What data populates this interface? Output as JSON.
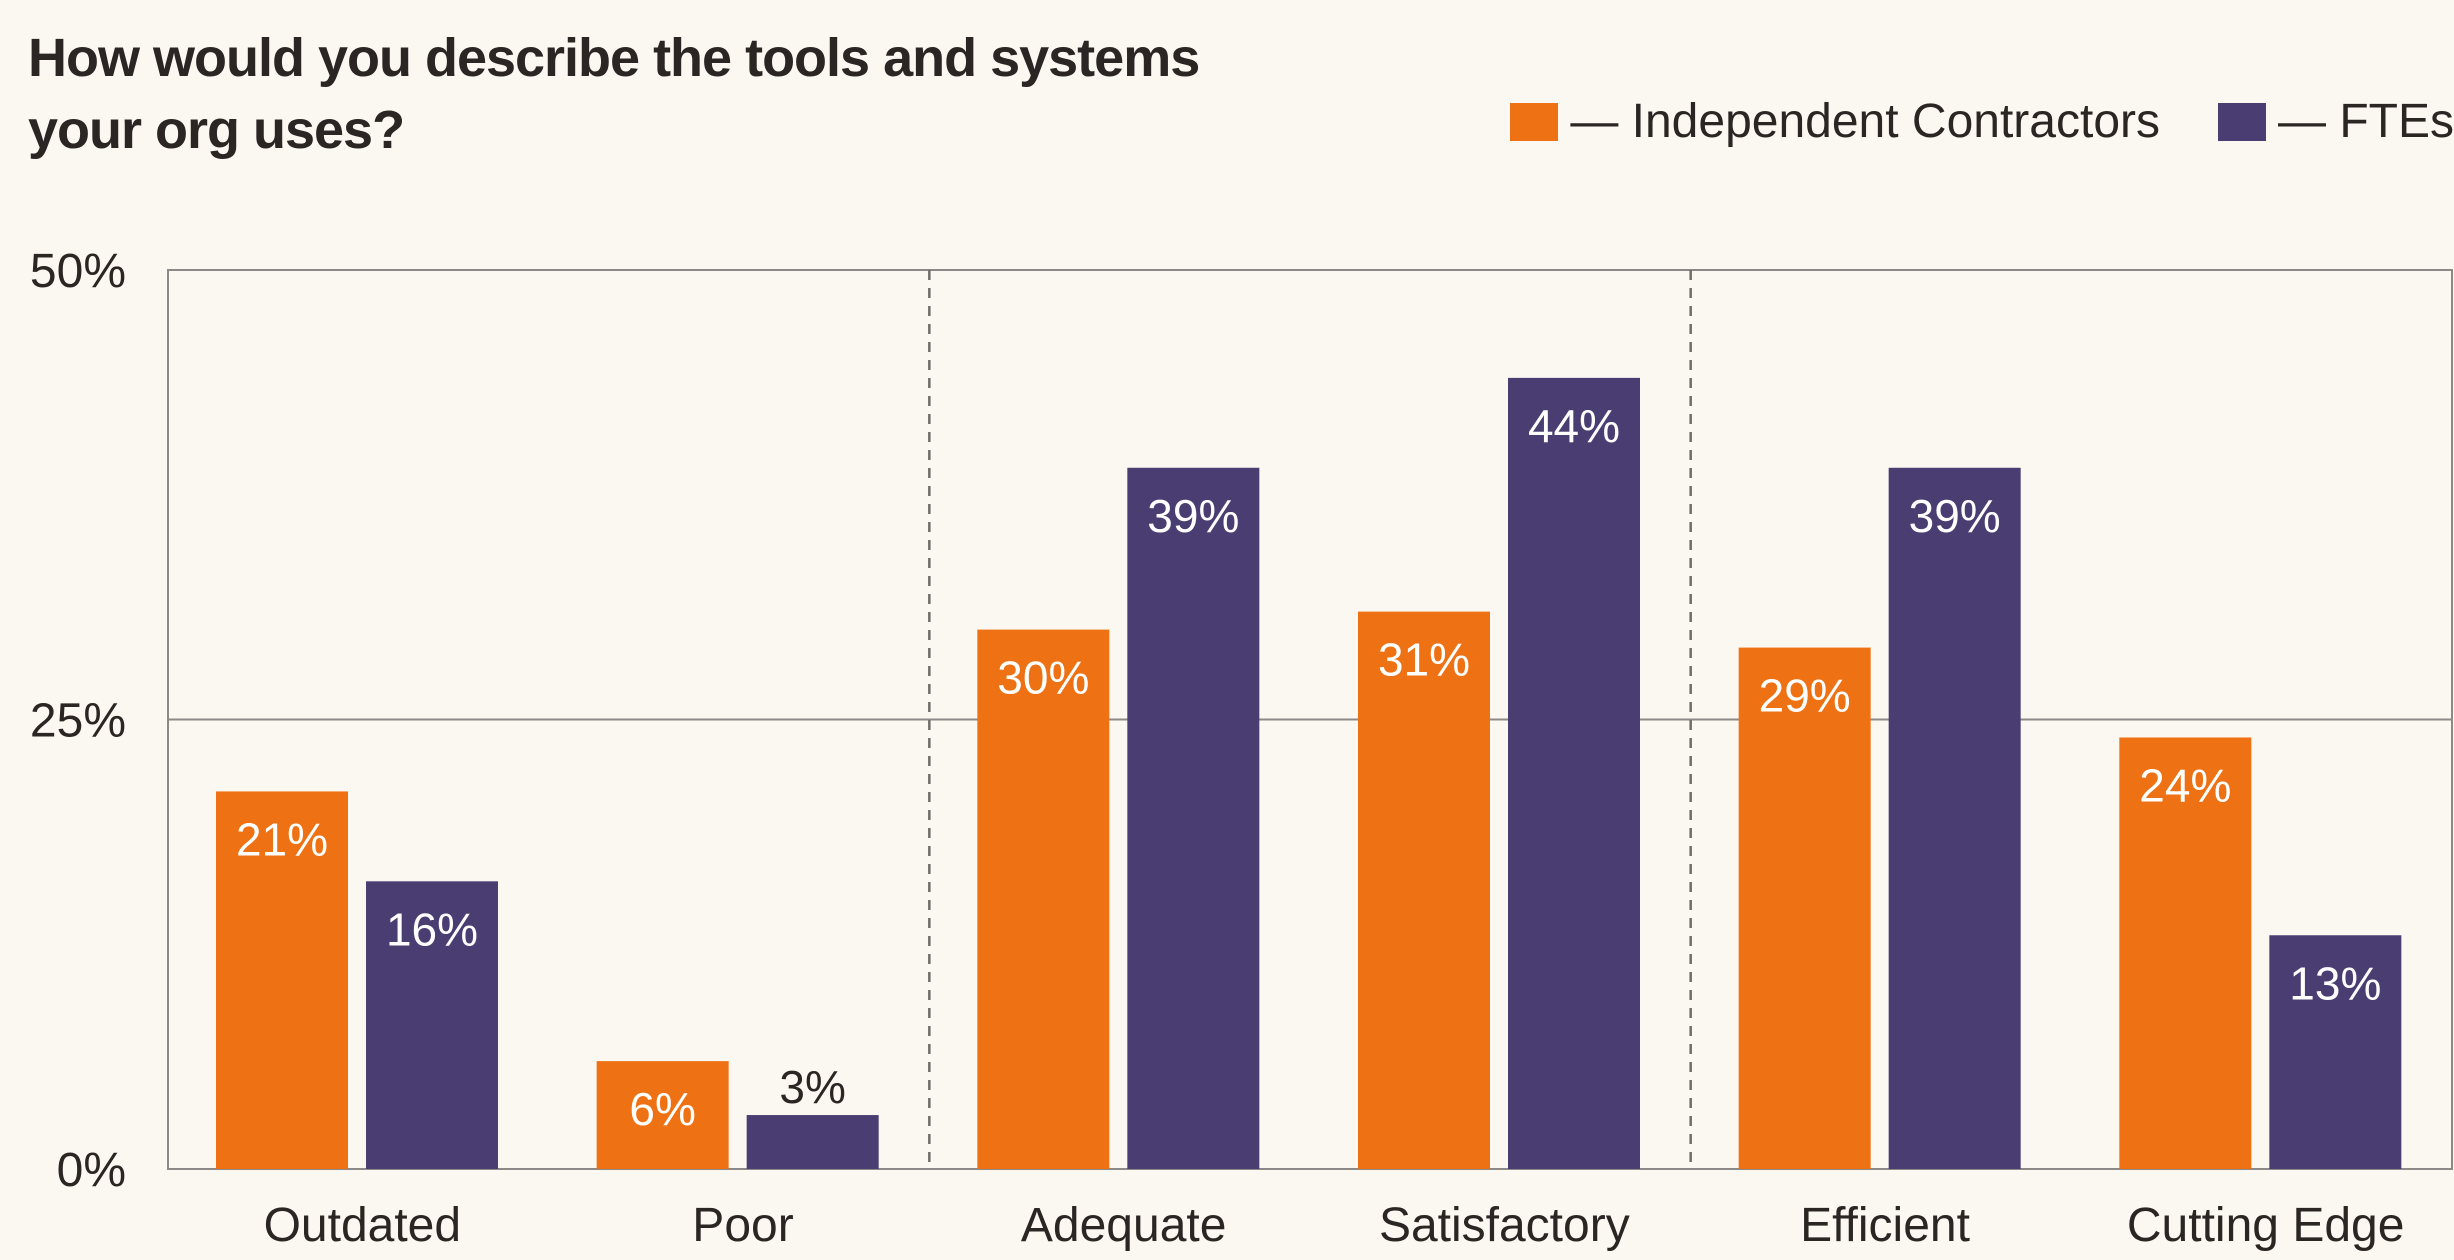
{
  "chart_data": {
    "type": "bar",
    "title": "How would you describe the tools and systems your org uses?",
    "categories": [
      "Outdated",
      "Poor",
      "Adequate",
      "Satisfactory",
      "Efficient",
      "Cutting Edge"
    ],
    "series": [
      {
        "name": "— Independent Contractors",
        "color": "#ee7214",
        "values": [
          21,
          6,
          30,
          31,
          29,
          24
        ],
        "labels": [
          "21%",
          "6%",
          "30%",
          "31%",
          "29%",
          "24%"
        ]
      },
      {
        "name": "— FTEs",
        "color": "#4a3d72",
        "values": [
          16,
          3,
          39,
          44,
          39,
          13
        ],
        "labels": [
          "16%",
          "3%",
          "39%",
          "44%",
          "39%",
          "13%"
        ]
      }
    ],
    "y_ticks": [
      {
        "value": 0,
        "label": "0%"
      },
      {
        "value": 25,
        "label": "25%"
      },
      {
        "value": 50,
        "label": "50%"
      }
    ],
    "ylim": [
      0,
      50
    ],
    "grid": true,
    "legend_position": "top-right"
  }
}
